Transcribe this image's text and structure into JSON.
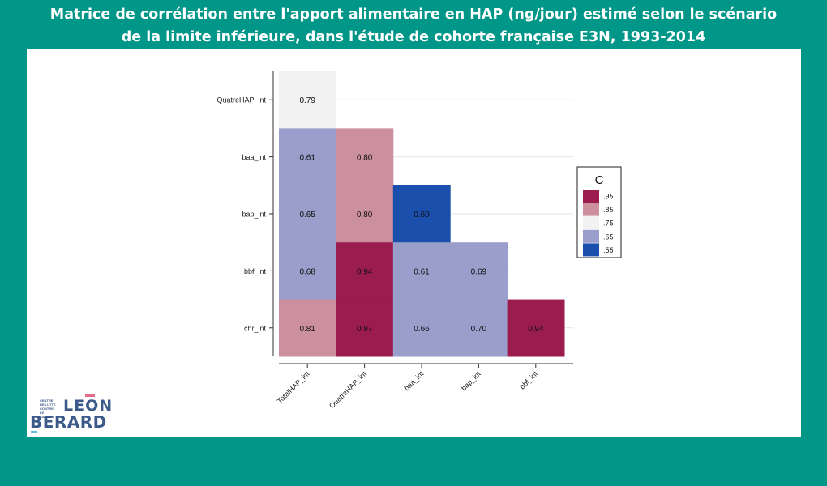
{
  "page": {
    "title_line1": "Matrice de corrélation entre l'apport alimentaire en HAP (ng/jour) estimé selon le scénario",
    "title_line2": "de la limite inférieure, dans l'étude de cohorte française E3N, 1993-2014"
  },
  "logo": {
    "small_text": "CENTRE DE LUTTE CONTRE LE CANCER",
    "line1": "LEON",
    "line2": "BERARD"
  },
  "colors": {
    "background": "#009688",
    "panel": "#ffffff"
  },
  "chart_data": {
    "type": "heatmap",
    "rows": [
      "QuatreHAP_int",
      "baa_int",
      "bap_int",
      "bbf_int",
      "chr_int"
    ],
    "columns": [
      "TotalHAP_int",
      "QuatreHAP_int",
      "baa_int",
      "bap_int",
      "bbf_int"
    ],
    "values": [
      [
        0.79,
        null,
        null,
        null,
        null
      ],
      [
        0.61,
        0.8,
        null,
        null,
        null
      ],
      [
        0.65,
        0.8,
        0.6,
        null,
        null
      ],
      [
        0.68,
        0.94,
        0.61,
        0.69,
        null
      ],
      [
        0.81,
        0.97,
        0.66,
        0.7,
        0.94
      ]
    ],
    "labels": [
      [
        "0.79",
        null,
        null,
        null,
        null
      ],
      [
        "0.61",
        "0.80",
        null,
        null,
        null
      ],
      [
        "0.65",
        "0.80",
        "0.60",
        null,
        null
      ],
      [
        "0.68",
        "0.94",
        "0.61",
        "0.69",
        null
      ],
      [
        "0.81",
        "0.97",
        "0.66",
        "0.70",
        "0.94"
      ]
    ],
    "legend": {
      "title": "C",
      "placement": "right",
      "entries": [
        {
          "label": ".95",
          "color": "#9a1d4e"
        },
        {
          "label": ".85",
          "color": "#cc8f9c"
        },
        {
          "label": ".75",
          "color": "#f2f2f2"
        },
        {
          "label": ".65",
          "color": "#9a9ecb"
        },
        {
          "label": ".55",
          "color": "#1b4fac"
        }
      ]
    },
    "grid": true
  }
}
